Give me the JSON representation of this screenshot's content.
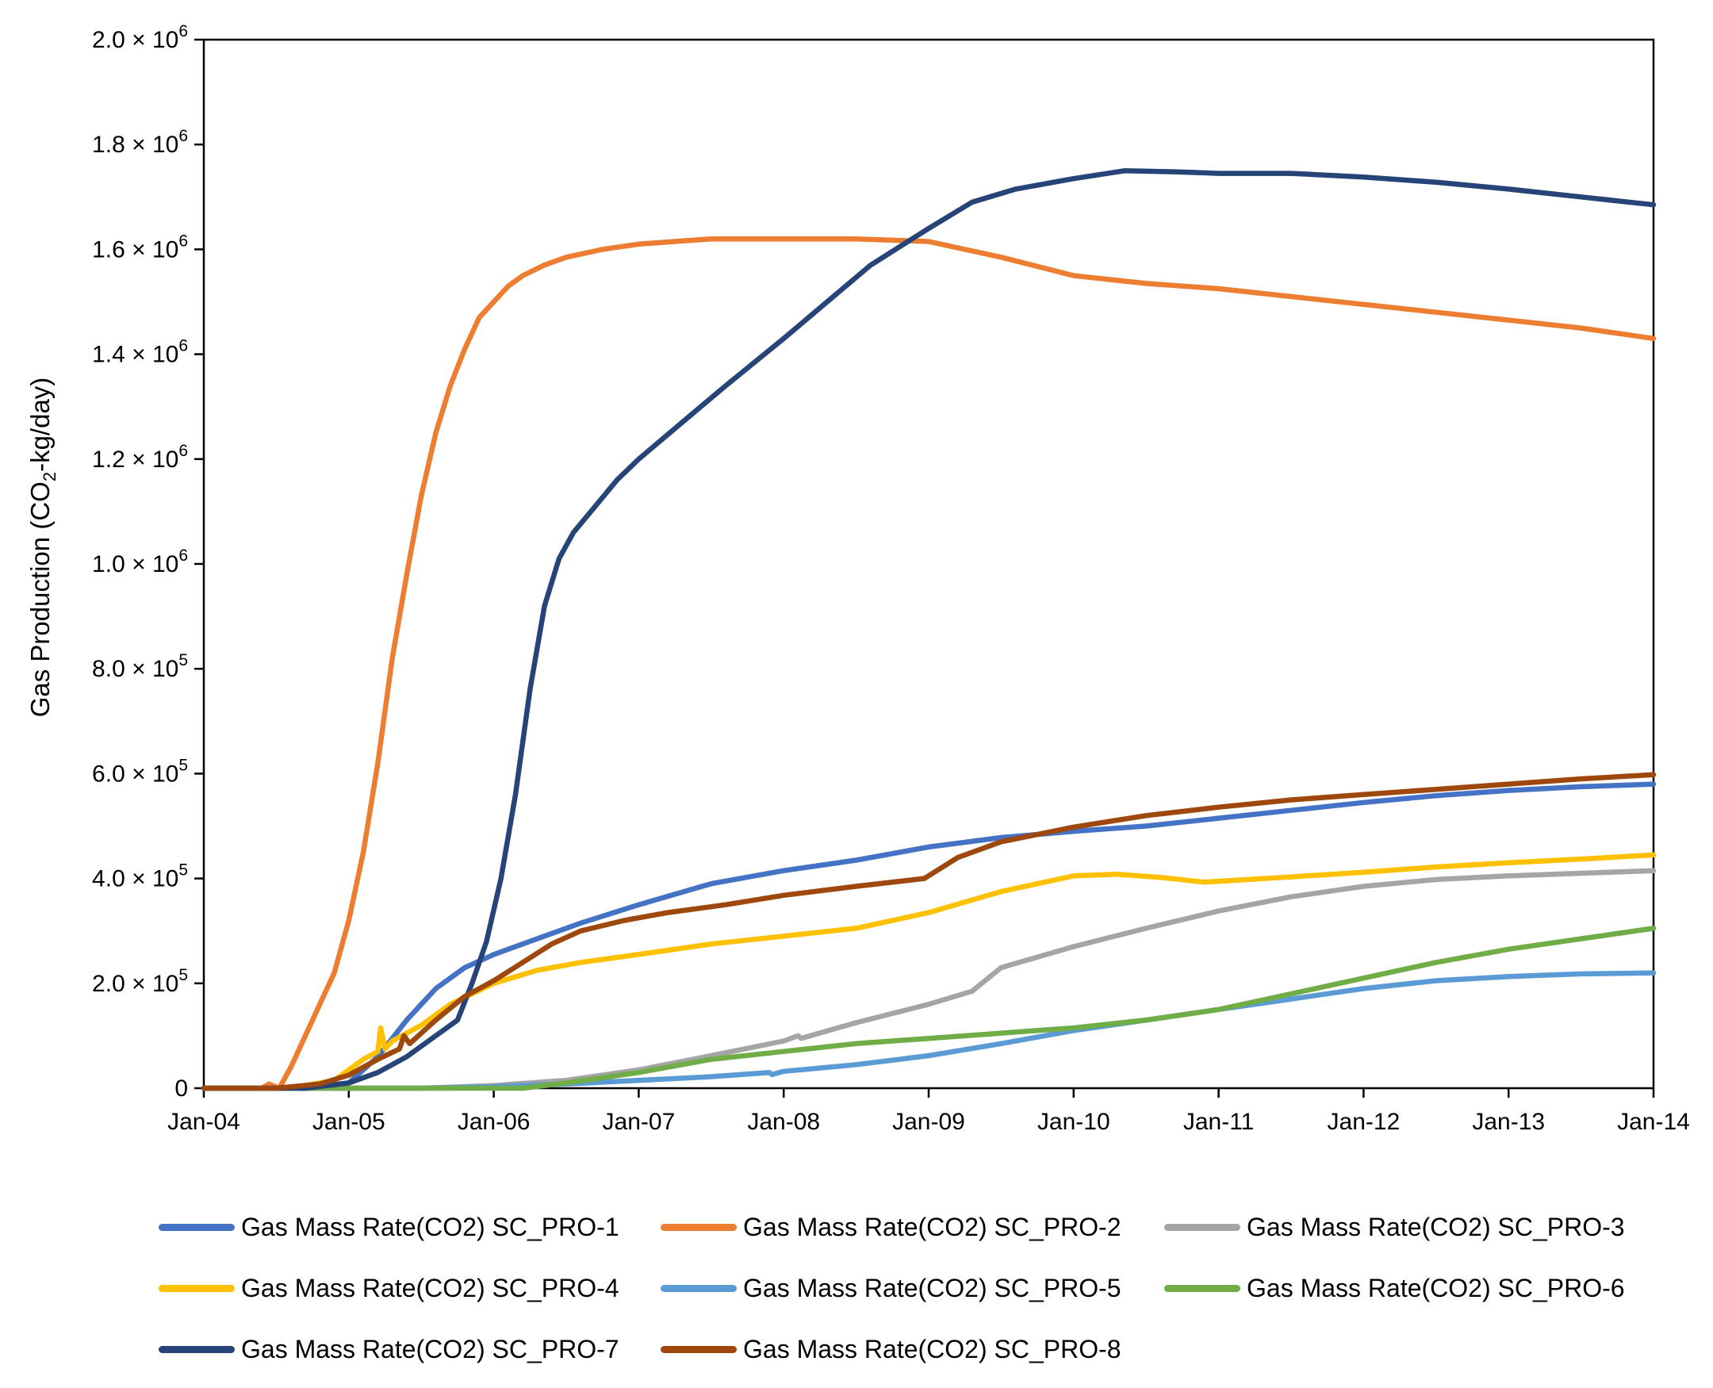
{
  "chart_data": {
    "type": "line",
    "title": "",
    "xlabel": "",
    "ylabel": "Gas Production (CO2-kg/day)",
    "ylabel_parts": {
      "pre": "Gas Production (CO",
      "sub": "2",
      "post": "-kg/day)"
    },
    "xlim": [
      2004.0,
      2014.0
    ],
    "ylim": [
      0,
      2000000
    ],
    "x_ticks": [
      {
        "value": 2004,
        "label": "Jan-04"
      },
      {
        "value": 2005,
        "label": "Jan-05"
      },
      {
        "value": 2006,
        "label": "Jan-06"
      },
      {
        "value": 2007,
        "label": "Jan-07"
      },
      {
        "value": 2008,
        "label": "Jan-08"
      },
      {
        "value": 2009,
        "label": "Jan-09"
      },
      {
        "value": 2010,
        "label": "Jan-10"
      },
      {
        "value": 2011,
        "label": "Jan-11"
      },
      {
        "value": 2012,
        "label": "Jan-12"
      },
      {
        "value": 2013,
        "label": "Jan-13"
      },
      {
        "value": 2014,
        "label": "Jan-14"
      }
    ],
    "y_ticks": [
      {
        "value": 0,
        "mant": "0",
        "exp": ""
      },
      {
        "value": 200000,
        "mant": "2.0 × 10",
        "exp": "5"
      },
      {
        "value": 400000,
        "mant": "4.0 × 10",
        "exp": "5"
      },
      {
        "value": 600000,
        "mant": "6.0 × 10",
        "exp": "5"
      },
      {
        "value": 800000,
        "mant": "8.0 × 10",
        "exp": "5"
      },
      {
        "value": 1000000,
        "mant": "1.0 × 10",
        "exp": "6"
      },
      {
        "value": 1200000,
        "mant": "1.2 × 10",
        "exp": "6"
      },
      {
        "value": 1400000,
        "mant": "1.4 × 10",
        "exp": "6"
      },
      {
        "value": 1600000,
        "mant": "1.6 × 10",
        "exp": "6"
      },
      {
        "value": 1800000,
        "mant": "1.8 × 10",
        "exp": "6"
      },
      {
        "value": 2000000,
        "mant": "2.0 × 10",
        "exp": "6"
      }
    ],
    "grid": false,
    "legend_position": "bottom",
    "series": [
      {
        "name": "Gas Mass Rate(CO2) SC_PRO-1",
        "color": "#4472C4",
        "x": [
          2004.0,
          2004.7,
          2005.0,
          2005.2,
          2005.4,
          2005.6,
          2005.8,
          2006.0,
          2006.3,
          2006.6,
          2007.0,
          2007.5,
          2008.0,
          2008.5,
          2009.0,
          2009.5,
          2010.0,
          2010.5,
          2011.0,
          2011.5,
          2012.0,
          2012.5,
          2013.0,
          2013.5,
          2014.0
        ],
        "y": [
          0,
          0,
          10000,
          60000,
          130000,
          190000,
          230000,
          255000,
          285000,
          315000,
          350000,
          390000,
          415000,
          435000,
          460000,
          478000,
          490000,
          500000,
          515000,
          530000,
          545000,
          558000,
          568000,
          575000,
          580000
        ]
      },
      {
        "name": "Gas Mass Rate(CO2) SC_PRO-2",
        "color": "#ED7D31",
        "x": [
          2004.0,
          2004.4,
          2004.45,
          2004.52,
          2004.6,
          2004.7,
          2004.8,
          2004.9,
          2005.0,
          2005.1,
          2005.2,
          2005.3,
          2005.4,
          2005.5,
          2005.6,
          2005.7,
          2005.8,
          2005.9,
          2006.0,
          2006.1,
          2006.2,
          2006.35,
          2006.5,
          2006.75,
          2007.0,
          2007.5,
          2008.0,
          2008.5,
          2009.0,
          2009.5,
          2010.0,
          2010.5,
          2011.0,
          2011.5,
          2012.0,
          2012.5,
          2013.0,
          2013.5,
          2014.0
        ],
        "y": [
          0,
          0,
          8000,
          0,
          40000,
          100000,
          160000,
          220000,
          320000,
          450000,
          620000,
          820000,
          980000,
          1130000,
          1250000,
          1340000,
          1410000,
          1470000,
          1500000,
          1530000,
          1550000,
          1570000,
          1585000,
          1600000,
          1610000,
          1620000,
          1620000,
          1620000,
          1615000,
          1585000,
          1550000,
          1535000,
          1525000,
          1510000,
          1495000,
          1480000,
          1465000,
          1450000,
          1430000
        ]
      },
      {
        "name": "Gas Mass Rate(CO2) SC_PRO-3",
        "color": "#A5A5A5",
        "x": [
          2004.0,
          2005.5,
          2006.0,
          2006.5,
          2007.0,
          2007.5,
          2008.0,
          2008.1,
          2008.12,
          2008.5,
          2009.0,
          2009.3,
          2009.5,
          2010.0,
          2010.5,
          2011.0,
          2011.5,
          2012.0,
          2012.5,
          2013.0,
          2013.5,
          2014.0
        ],
        "y": [
          0,
          0,
          5000,
          15000,
          35000,
          62000,
          90000,
          100000,
          95000,
          125000,
          160000,
          185000,
          230000,
          270000,
          305000,
          338000,
          365000,
          385000,
          398000,
          405000,
          410000,
          415000
        ]
      },
      {
        "name": "Gas Mass Rate(CO2) SC_PRO-4",
        "color": "#FFC000",
        "x": [
          2004.0,
          2004.6,
          2004.9,
          2005.1,
          2005.2,
          2005.22,
          2005.25,
          2005.3,
          2005.5,
          2005.7,
          2006.0,
          2006.3,
          2006.6,
          2007.0,
          2007.5,
          2008.0,
          2008.5,
          2009.0,
          2009.5,
          2010.0,
          2010.3,
          2010.6,
          2010.9,
          2011.5,
          2012.0,
          2012.5,
          2013.0,
          2013.5,
          2014.0
        ],
        "y": [
          0,
          0,
          15000,
          55000,
          70000,
          115000,
          75000,
          90000,
          120000,
          160000,
          200000,
          225000,
          240000,
          255000,
          275000,
          290000,
          305000,
          335000,
          375000,
          405000,
          408000,
          402000,
          393000,
          403000,
          412000,
          422000,
          430000,
          437000,
          445000
        ]
      },
      {
        "name": "Gas Mass Rate(CO2) SC_PRO-5",
        "color": "#5B9BD5",
        "x": [
          2004.0,
          2005.5,
          2006.0,
          2006.5,
          2007.0,
          2007.5,
          2007.9,
          2007.92,
          2008.0,
          2008.5,
          2009.0,
          2009.5,
          2010.0,
          2010.5,
          2011.0,
          2011.5,
          2012.0,
          2012.5,
          2013.0,
          2013.5,
          2014.0
        ],
        "y": [
          0,
          0,
          3000,
          8000,
          15000,
          22000,
          30000,
          26000,
          32000,
          45000,
          62000,
          85000,
          110000,
          130000,
          150000,
          170000,
          190000,
          205000,
          213000,
          218000,
          220000
        ]
      },
      {
        "name": "Gas Mass Rate(CO2) SC_PRO-6",
        "color": "#70AD47",
        "x": [
          2004.0,
          2006.2,
          2006.5,
          2007.0,
          2007.5,
          2008.0,
          2008.5,
          2009.0,
          2009.5,
          2010.0,
          2010.5,
          2011.0,
          2011.5,
          2012.0,
          2012.5,
          2013.0,
          2013.5,
          2014.0
        ],
        "y": [
          0,
          0,
          10000,
          30000,
          55000,
          70000,
          85000,
          95000,
          105000,
          115000,
          130000,
          150000,
          180000,
          210000,
          240000,
          265000,
          285000,
          305000
        ]
      },
      {
        "name": "Gas Mass Rate(CO2) SC_PRO-7",
        "color": "#264478",
        "x": [
          2004.0,
          2004.7,
          2005.0,
          2005.2,
          2005.4,
          2005.6,
          2005.75,
          2005.85,
          2005.95,
          2006.05,
          2006.15,
          2006.25,
          2006.35,
          2006.45,
          2006.55,
          2006.7,
          2006.85,
          2007.0,
          2007.3,
          2007.6,
          2008.0,
          2008.3,
          2008.6,
          2009.0,
          2009.3,
          2009.6,
          2010.0,
          2010.35,
          2010.7,
          2011.0,
          2011.5,
          2012.0,
          2012.5,
          2013.0,
          2013.5,
          2014.0
        ],
        "y": [
          0,
          0,
          10000,
          30000,
          60000,
          100000,
          130000,
          200000,
          280000,
          400000,
          560000,
          760000,
          920000,
          1010000,
          1060000,
          1110000,
          1160000,
          1200000,
          1270000,
          1340000,
          1430000,
          1500000,
          1570000,
          1640000,
          1690000,
          1715000,
          1735000,
          1750000,
          1748000,
          1745000,
          1745000,
          1738000,
          1728000,
          1715000,
          1700000,
          1685000
        ]
      },
      {
        "name": "Gas Mass Rate(CO2) SC_PRO-8",
        "color": "#9E480E",
        "x": [
          2004.0,
          2004.5,
          2004.8,
          2005.0,
          2005.2,
          2005.35,
          2005.38,
          2005.42,
          2005.6,
          2005.8,
          2006.0,
          2006.2,
          2006.4,
          2006.6,
          2006.9,
          2007.2,
          2007.6,
          2008.0,
          2008.5,
          2008.97,
          2009.2,
          2009.5,
          2010.0,
          2010.5,
          2011.0,
          2011.5,
          2012.0,
          2012.5,
          2013.0,
          2013.5,
          2014.0
        ],
        "y": [
          0,
          0,
          8000,
          25000,
          55000,
          75000,
          100000,
          85000,
          130000,
          175000,
          205000,
          240000,
          275000,
          300000,
          320000,
          335000,
          350000,
          368000,
          385000,
          400000,
          440000,
          470000,
          498000,
          520000,
          536000,
          550000,
          560000,
          570000,
          580000,
          590000,
          598000
        ]
      }
    ]
  }
}
